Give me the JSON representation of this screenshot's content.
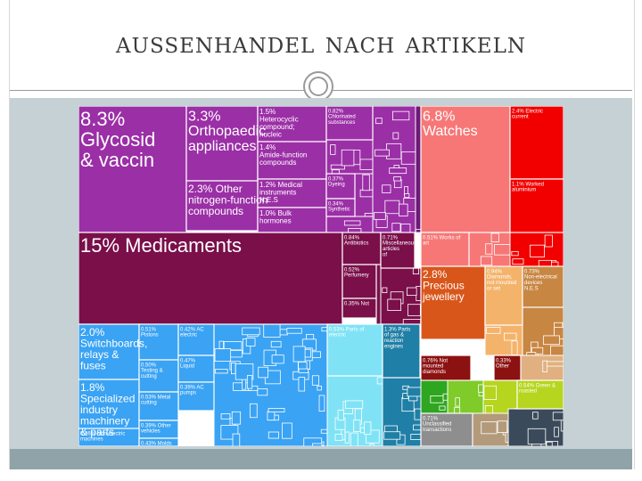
{
  "slide": {
    "title": "aussenhandel nach artikeln"
  },
  "chart_data": {
    "type": "treemap",
    "title": "",
    "tiles": [
      {
        "label": "8.3% Glycosid & vaccin",
        "value": 8.3,
        "color": "#9b2fa6",
        "size": "xl"
      },
      {
        "label": "3.3% Orthopaedic appliances",
        "value": 3.3,
        "color": "#9b2fa6",
        "size": "l"
      },
      {
        "label": "1.5% Heterocyclic compound; nucleic",
        "value": 1.5,
        "color": "#9b2fa6",
        "size": "s"
      },
      {
        "label": "0.82% Chlorinated substances",
        "value": 0.82,
        "color": "#9b2fa6",
        "size": "xs"
      },
      {
        "label": "1.4% Amide-function compounds",
        "value": 1.4,
        "color": "#9b2fa6",
        "size": "s"
      },
      {
        "label": "2.3% Other nitrogen-function compounds",
        "value": 2.3,
        "color": "#9b2fa6",
        "size": "m"
      },
      {
        "label": "1.2% Medical instruments N.E.S",
        "value": 1.2,
        "color": "#9b2fa6",
        "size": "s"
      },
      {
        "label": "1.0% Bulk hormones",
        "value": 1.0,
        "color": "#9b2fa6",
        "size": "s"
      },
      {
        "label": "0.37% Dyeing",
        "value": 0.37,
        "color": "#9b2fa6",
        "size": "xs"
      },
      {
        "label": "0.34% Synthetic",
        "value": 0.34,
        "color": "#9b2fa6",
        "size": "xs"
      },
      {
        "label": "15% Medicaments",
        "value": 15,
        "color": "#7a0f4a",
        "size": "xl"
      },
      {
        "label": "0.84% Antibiotics",
        "value": 0.84,
        "color": "#7a0f4a",
        "size": "xs"
      },
      {
        "label": "0.71% Miscellaneous articles of",
        "value": 0.71,
        "color": "#7a0f4a",
        "size": "xs"
      },
      {
        "label": "0.52% Perfumery",
        "value": 0.52,
        "color": "#7a0f4a",
        "size": "xs"
      },
      {
        "label": "0.35% Not",
        "value": 0.35,
        "color": "#7a0f4a",
        "size": "xs"
      },
      {
        "label": "6.8% Watches",
        "value": 6.8,
        "color": "#f77777",
        "size": "l",
        "dark": true
      },
      {
        "label": "2.4% Electric current",
        "value": 2.4,
        "color": "#f20000",
        "size": "xs"
      },
      {
        "label": "1.1% Worked aluminium",
        "value": 1.1,
        "color": "#f20000",
        "size": "xs"
      },
      {
        "label": "0.51% Works of art",
        "value": 0.51,
        "color": "#f77777",
        "size": "xs"
      },
      {
        "label": "2.8% Precious jewellery",
        "value": 2.8,
        "color": "#d9561b",
        "size": "m"
      },
      {
        "label": "0.94% Diamonds, not mounted or set",
        "value": 0.94,
        "color": "#f4b36b",
        "size": "xs"
      },
      {
        "label": "0.73% Non-electrical devices N.E.S",
        "value": 0.73,
        "color": "#c88643",
        "size": "xs"
      },
      {
        "label": "2.0% Switchboards, relays & fuses",
        "value": 2.0,
        "color": "#3aa3f4",
        "size": "m"
      },
      {
        "label": "1.8% Specialized industry machinery & parts",
        "value": 1.8,
        "color": "#3aa3f4",
        "size": "m"
      },
      {
        "label": "0.51% Pistons",
        "value": 0.51,
        "color": "#3aa3f4",
        "size": "xs"
      },
      {
        "label": "0.42% AC electric",
        "value": 0.42,
        "color": "#3aa3f4",
        "size": "xs"
      },
      {
        "label": "0.50% Testing & cutting",
        "value": 0.5,
        "color": "#3aa3f4",
        "size": "xs"
      },
      {
        "label": "0.47% Liquid",
        "value": 0.47,
        "color": "#3aa3f4",
        "size": "xs"
      },
      {
        "label": "0.39% AC pumps",
        "value": 0.39,
        "color": "#3aa3f4",
        "size": "xs"
      },
      {
        "label": "0.53% Metal cutting",
        "value": 0.53,
        "color": "#3aa3f4",
        "size": "xs"
      },
      {
        "label": "0.39% Other vehicles",
        "value": 0.39,
        "color": "#3aa3f4",
        "size": "xs"
      },
      {
        "label": "0.36% Non electric machines",
        "value": 0.36,
        "color": "#3aa3f4",
        "size": "xs"
      },
      {
        "label": "0.43% Molds",
        "value": 0.43,
        "color": "#3aa3f4",
        "size": "xs"
      },
      {
        "label": "0.53% Parts of electric",
        "value": 0.53,
        "color": "#7fe3f5",
        "size": "xs",
        "dark": true
      },
      {
        "label": "1.3% Parts of gas & reaction engines",
        "value": 1.3,
        "color": "#1f7fa6",
        "size": "xs"
      },
      {
        "label": "0.76% Not mounted diamonds",
        "value": 0.76,
        "color": "#8c1111",
        "size": "xs"
      },
      {
        "label": "0.33% Other",
        "value": 0.33,
        "color": "#8c1111",
        "size": "xs"
      },
      {
        "label": "0.54% Green & roasted",
        "value": 0.54,
        "color": "#b6d51f",
        "size": "xs"
      },
      {
        "label": "0.71% Unclassified transactions",
        "value": 0.71,
        "color": "#8e8e8e",
        "size": "xs"
      }
    ]
  }
}
